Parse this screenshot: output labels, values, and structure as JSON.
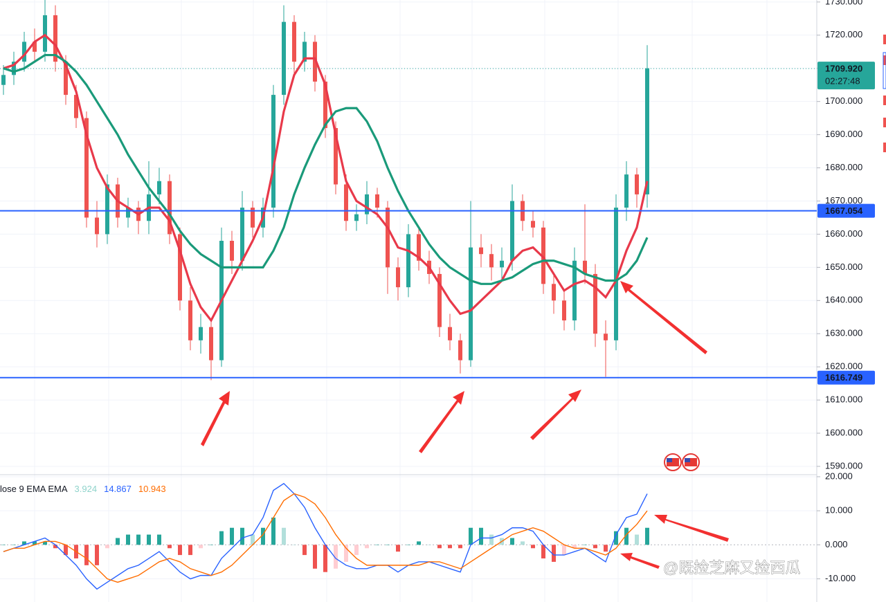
{
  "chart_data": [
    {
      "type": "candlestick",
      "open": [
        1705,
        1708,
        1712,
        1718,
        1715,
        1726,
        1712,
        1702,
        1695,
        1665,
        1660,
        1675,
        1665,
        1668,
        1664,
        1672,
        1676,
        1660,
        1640,
        1628,
        1632,
        1622,
        1658,
        1652,
        1668,
        1662,
        1668,
        1702,
        1724,
        1712,
        1718,
        1706,
        1692,
        1675,
        1664,
        1666,
        1672,
        1668,
        1650,
        1644,
        1660,
        1652,
        1648,
        1632,
        1628,
        1622,
        1656,
        1654,
        1650,
        1652,
        1670,
        1664,
        1662,
        1645,
        1640,
        1634,
        1652,
        1648,
        1630,
        1628,
        1668,
        1678,
        1672
      ],
      "high": [
        1711,
        1715,
        1721,
        1722,
        1731,
        1729,
        1714,
        1705,
        1697,
        1670,
        1678,
        1677,
        1671,
        1670,
        1682,
        1680,
        1678,
        1662,
        1644,
        1636,
        1634,
        1662,
        1661,
        1673,
        1670,
        1671,
        1705,
        1729,
        1726,
        1721,
        1720,
        1708,
        1694,
        1678,
        1669,
        1676,
        1674,
        1670,
        1653,
        1663,
        1662,
        1655,
        1650,
        1636,
        1630,
        1670,
        1660,
        1657,
        1656,
        1675,
        1672,
        1667,
        1664,
        1648,
        1643,
        1656,
        1669,
        1651,
        1634,
        1672,
        1682,
        1680,
        1717
      ],
      "low": [
        1702,
        1705,
        1709,
        1712,
        1712,
        1709,
        1699,
        1692,
        1662,
        1656,
        1657,
        1662,
        1662,
        1660,
        1660,
        1669,
        1657,
        1637,
        1625,
        1624,
        1616,
        1620,
        1648,
        1649,
        1659,
        1659,
        1665,
        1699,
        1708,
        1709,
        1703,
        1689,
        1672,
        1661,
        1661,
        1663,
        1665,
        1642,
        1640,
        1641,
        1649,
        1645,
        1629,
        1625,
        1618,
        1620,
        1650,
        1646,
        1646,
        1649,
        1661,
        1659,
        1642,
        1636,
        1631,
        1631,
        1645,
        1626,
        1617,
        1625,
        1664,
        1668,
        1668
      ],
      "close": [
        1708,
        1712,
        1718,
        1715,
        1726,
        1712,
        1702,
        1695,
        1665,
        1660,
        1675,
        1665,
        1668,
        1664,
        1672,
        1676,
        1660,
        1640,
        1628,
        1632,
        1622,
        1658,
        1652,
        1668,
        1662,
        1668,
        1702,
        1724,
        1712,
        1718,
        1706,
        1692,
        1675,
        1664,
        1666,
        1672,
        1668,
        1650,
        1644,
        1660,
        1652,
        1648,
        1632,
        1628,
        1622,
        1656,
        1654,
        1650,
        1652,
        1670,
        1664,
        1662,
        1645,
        1640,
        1634,
        1652,
        1648,
        1630,
        1628,
        1668,
        1678,
        1672,
        1710
      ],
      "up_color": "#26a69a",
      "down_color": "#ef5350",
      "overlays": [
        {
          "color": "#e8394a",
          "values": [
            1710,
            1711,
            1714,
            1718,
            1720,
            1717,
            1711,
            1703,
            1690,
            1680,
            1674,
            1670,
            1668,
            1666,
            1668,
            1668,
            1664,
            1655,
            1645,
            1638,
            1634,
            1640,
            1646,
            1652,
            1658,
            1665,
            1680,
            1697,
            1708,
            1713,
            1713,
            1705,
            1690,
            1676,
            1670,
            1668,
            1666,
            1662,
            1656,
            1655,
            1653,
            1650,
            1645,
            1640,
            1636,
            1637,
            1640,
            1643,
            1646,
            1652,
            1655,
            1656,
            1653,
            1648,
            1643,
            1645,
            1646,
            1644,
            1641,
            1646,
            1655,
            1662,
            1676
          ]
        },
        {
          "color": "#1a9a7a",
          "values": [
            1710,
            1709,
            1710,
            1712,
            1714,
            1714,
            1712,
            1709,
            1705,
            1700,
            1695,
            1690,
            1684,
            1679,
            1674,
            1670,
            1666,
            1661,
            1657,
            1654,
            1652,
            1650,
            1650,
            1650,
            1650,
            1650,
            1655,
            1662,
            1672,
            1680,
            1687,
            1693,
            1697,
            1698,
            1698,
            1694,
            1688,
            1680,
            1673,
            1667,
            1662,
            1657,
            1653,
            1650,
            1648,
            1646,
            1645,
            1645,
            1646,
            1647,
            1649,
            1651,
            1652,
            1652,
            1651,
            1650,
            1648,
            1647,
            1646,
            1646,
            1648,
            1652,
            1659
          ]
        }
      ],
      "price_lines": [
        {
          "value": 1667.054,
          "color": "#2962ff"
        },
        {
          "value": 1616.749,
          "color": "#2962ff"
        }
      ],
      "last_price": {
        "value": 1709.92,
        "label": "1709.920",
        "color": "#26a69a"
      },
      "countdown": "02:27:48",
      "ylim": [
        1587.7,
        1730.6
      ],
      "yticks": [
        {
          "value": 1730,
          "label": "1730.000"
        },
        {
          "value": 1720,
          "label": "1720.000"
        },
        {
          "value": 1710,
          "label": "1710.000"
        },
        {
          "value": 1700,
          "label": "1700.000"
        },
        {
          "value": 1690,
          "label": "1690.000"
        },
        {
          "value": 1680,
          "label": "1680.000"
        },
        {
          "value": 1670,
          "label": "1670.000"
        },
        {
          "value": 1660,
          "label": "1660.000"
        },
        {
          "value": 1650,
          "label": "1650.000"
        },
        {
          "value": 1640,
          "label": "1640.000"
        },
        {
          "value": 1630,
          "label": "1630.000"
        },
        {
          "value": 1620,
          "label": "1620.000"
        },
        {
          "value": 1610,
          "label": "1610.000"
        },
        {
          "value": 1600,
          "label": "1600.000"
        },
        {
          "value": 1590,
          "label": "1590.000"
        }
      ],
      "grid": true
    },
    {
      "type": "macd",
      "title": "lose 9 EMA EMA",
      "legend_values": [
        {
          "value": 3.924,
          "color": "#8fd3cb"
        },
        {
          "value": 14.867,
          "color": "#2962ff"
        },
        {
          "value": 10.943,
          "color": "#ff6d00"
        }
      ],
      "series": [
        {
          "color": "#2962ff",
          "values": [
            -2,
            -1,
            0,
            1,
            2,
            0,
            -3,
            -6,
            -10,
            -13,
            -11,
            -9,
            -7,
            -6,
            -4,
            -2,
            -5,
            -8,
            -10,
            -9,
            -9,
            -4,
            -1,
            2,
            3,
            8,
            16,
            18,
            15,
            11,
            5,
            0,
            -4,
            -6,
            -7,
            -7,
            -6,
            -6,
            -8,
            -6,
            -5,
            -5,
            -6,
            -7,
            -8,
            0,
            2,
            2,
            3,
            5,
            5,
            4,
            0,
            -3,
            -3,
            -2,
            -1,
            -3,
            -5,
            3,
            8,
            9,
            15
          ]
        },
        {
          "color": "#ff6d00",
          "values": [
            -2,
            -1,
            -1,
            0,
            1,
            1,
            0,
            -2,
            -4,
            -7,
            -10,
            -11,
            -10,
            -9,
            -7,
            -5,
            -4,
            -5,
            -7,
            -8,
            -9,
            -8,
            -6,
            -3,
            0,
            3,
            8,
            13,
            15,
            14,
            12,
            8,
            3,
            -1,
            -4,
            -6,
            -6,
            -6,
            -6,
            -6,
            -6,
            -5,
            -5,
            -6,
            -7,
            -5,
            -3,
            -1,
            1,
            3,
            4,
            5,
            4,
            2,
            0,
            -1,
            -1,
            -2,
            -3,
            -1,
            3,
            6,
            10
          ]
        }
      ],
      "histogram": {
        "values": [
          0,
          0,
          1,
          1,
          1,
          -1,
          -3,
          -4,
          -6,
          -6,
          -1,
          2,
          3,
          3,
          3,
          3,
          -1,
          -3,
          -3,
          -1,
          0,
          4,
          5,
          5,
          3,
          5,
          8,
          5,
          0,
          -3,
          -7,
          -8,
          -7,
          -5,
          -3,
          -1,
          0,
          0,
          -2,
          0,
          1,
          0,
          -1,
          -1,
          -1,
          5,
          5,
          3,
          2,
          2,
          1,
          -1,
          -4,
          -5,
          -3,
          -1,
          0,
          -1,
          -2,
          4,
          5,
          3,
          5
        ],
        "up_color": "#26a69a",
        "up_fading_color": "#b2dfdb",
        "down_color": "#ef5350",
        "down_fading_color": "#ffcdd2"
      },
      "ylim": [
        -16.8,
        20.6
      ],
      "yticks": [
        {
          "value": 20,
          "label": "20.000"
        },
        {
          "value": 10,
          "label": "10.000"
        },
        {
          "value": 0,
          "label": "0.000"
        },
        {
          "value": -10,
          "label": "-10.000"
        }
      ],
      "grid": true
    }
  ],
  "watermark": "@既捡芝麻又捡西瓜"
}
